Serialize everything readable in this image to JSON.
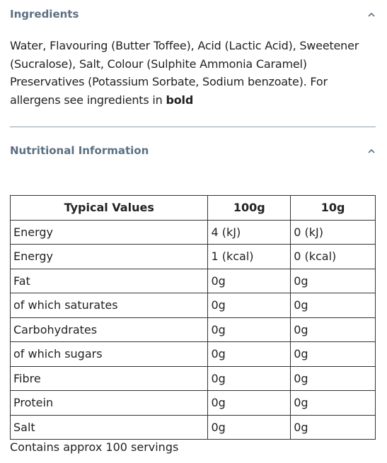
{
  "ingredients": {
    "title": "Ingredients",
    "text": "Water, Flavouring (Butter Toffee), Acid (Lactic Acid), Sweetener (Sucralose), Salt, Colour (Sulphite Ammonia Caramel) Preservatives (Potassium Sorbate, Sodium benzoate). For allergens see ingredients in",
    "bold": "bold"
  },
  "nutrition": {
    "title": "Nutritional Information",
    "table": {
      "header": [
        "Typical Values",
        "100g",
        "10g"
      ],
      "rows": [
        [
          "Energy",
          "4 (kJ)",
          "0 (kJ)"
        ],
        [
          "Energy",
          "1 (kcal)",
          "0 (kcal)"
        ],
        [
          "Fat",
          "0g",
          "0g"
        ],
        [
          "of which saturates",
          "0g",
          "0g"
        ],
        [
          "Carbohydrates",
          "0g",
          "0g"
        ],
        [
          "of which sugars",
          "0g",
          "0g"
        ],
        [
          "Fibre",
          "0g",
          "0g"
        ],
        [
          "Protein",
          "0g",
          "0g"
        ],
        [
          "Salt",
          "0g",
          "0g"
        ]
      ]
    },
    "footer": "Contains approx 100 servings"
  }
}
